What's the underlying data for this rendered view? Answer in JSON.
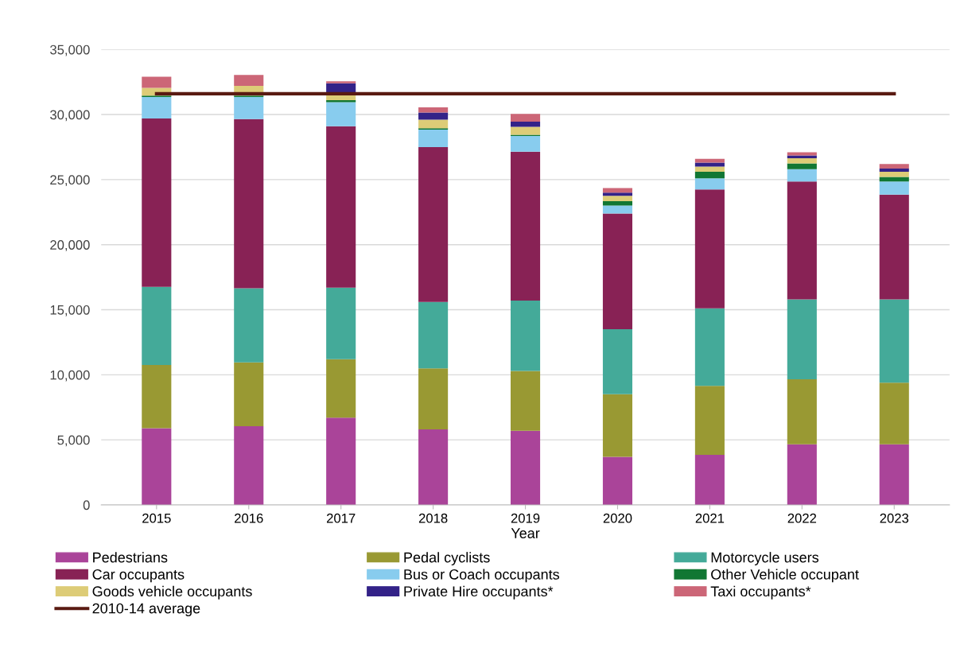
{
  "chart_data": {
    "type": "bar",
    "stacked": true,
    "xlabel": "Year",
    "categories": [
      "2015",
      "2016",
      "2017",
      "2018",
      "2019",
      "2020",
      "2021",
      "2022",
      "2023"
    ],
    "series": [
      {
        "name": "Pedestrians",
        "color": "#aa4499",
        "values": [
          5900,
          6050,
          6700,
          5800,
          5700,
          3700,
          3850,
          4650,
          4650
        ]
      },
      {
        "name": "Pedal cyclists",
        "color": "#999933",
        "values": [
          4850,
          4900,
          4500,
          4700,
          4600,
          4800,
          5300,
          5000,
          4750
        ]
      },
      {
        "name": "Motorcycle users",
        "color": "#44aa99",
        "values": [
          6000,
          5700,
          5500,
          5100,
          5400,
          5000,
          5950,
          6150,
          6400
        ]
      },
      {
        "name": "Car occupants",
        "color": "#882255",
        "values": [
          12950,
          13000,
          12400,
          11900,
          11450,
          8900,
          9150,
          9050,
          8050
        ]
      },
      {
        "name": "Bus or Coach occupants",
        "color": "#88ccee",
        "values": [
          1650,
          1700,
          1850,
          1350,
          1200,
          600,
          850,
          950,
          1000
        ]
      },
      {
        "name": "Other Vehicle occupant",
        "color": "#117733",
        "values": [
          100,
          100,
          150,
          100,
          100,
          350,
          500,
          450,
          350
        ]
      },
      {
        "name": "Goods vehicle occupants",
        "color": "#ddcc77",
        "values": [
          600,
          750,
          400,
          650,
          600,
          400,
          400,
          400,
          400
        ]
      },
      {
        "name": "Private Hire occupants*",
        "color": "#332288",
        "values": [
          null,
          null,
          900,
          550,
          400,
          250,
          300,
          200,
          250
        ]
      },
      {
        "name": "Taxi occupants*",
        "color": "#cc6677",
        "values": [
          850,
          850,
          150,
          400,
          600,
          350,
          300,
          250,
          350
        ]
      },
      {
        "name": "2010-14 average",
        "color": "#5a1a12",
        "type": "line",
        "values": [
          31600,
          31600,
          31600,
          31600,
          31600,
          31600,
          31600,
          31600,
          31600
        ]
      }
    ],
    "ylim": [
      0,
      35000
    ],
    "yticks": [
      0,
      {
        "value": 5000,
        "label": "5,000"
      },
      {
        "value": 10000,
        "label": "10,000"
      },
      {
        "value": 15000,
        "label": "15,000"
      },
      {
        "value": 20000,
        "label": "20,000"
      },
      {
        "value": 25000,
        "label": "25,000"
      },
      {
        "value": 30000,
        "label": "30,000"
      },
      {
        "value": 35000,
        "label": "35,000"
      }
    ],
    "grid": "y",
    "legend": "bottom"
  }
}
